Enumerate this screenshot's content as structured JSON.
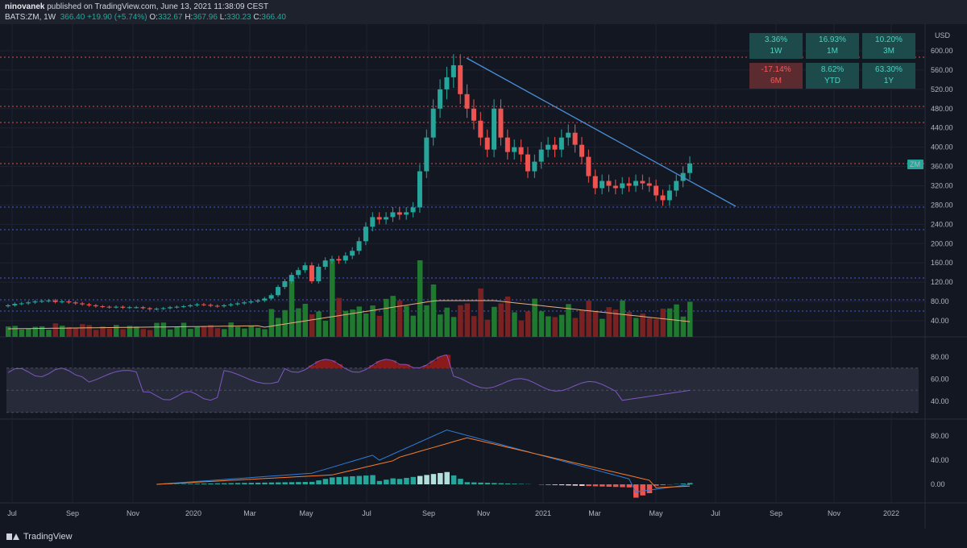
{
  "header": {
    "author": "ninovanek",
    "published_text": "published on TradingView.com, June 13, 2021 11:38:09 CEST",
    "symbol": "BATS:ZM, 1W",
    "last": "366.40",
    "change": "+19.90 (+5.74%)",
    "open_label": "O:",
    "open": "332.67",
    "high_label": "H:",
    "high": "367.96",
    "low_label": "L:",
    "low": "330.23",
    "close_label": "C:",
    "close": "366.40"
  },
  "price_tag": "ZM",
  "currency": "USD",
  "performance": [
    {
      "value": "3.36%",
      "period": "1W",
      "tone": "pos"
    },
    {
      "value": "16.93%",
      "period": "1M",
      "tone": "pos"
    },
    {
      "value": "10.20%",
      "period": "3M",
      "tone": "pos"
    },
    {
      "value": "-17.14%",
      "period": "6M",
      "tone": "neg"
    },
    {
      "value": "8.62%",
      "period": "YTD",
      "tone": "pos"
    },
    {
      "value": "63.30%",
      "period": "1Y",
      "tone": "pos"
    }
  ],
  "footer": {
    "brand": "TradingView"
  },
  "chart_data": {
    "type": "candlestick",
    "x_axis_labels": [
      "Jul",
      "Sep",
      "Nov",
      "2020",
      "Mar",
      "May",
      "Jul",
      "Sep",
      "Nov",
      "2021",
      "Mar",
      "May",
      "Jul",
      "Sep",
      "Nov",
      "2022"
    ],
    "price_axis": {
      "ticks": [
        "600.00",
        "560.00",
        "520.00",
        "480.00",
        "440.00",
        "400.00",
        "360.00",
        "320.00",
        "280.00",
        "240.00",
        "200.00",
        "160.00",
        "120.00",
        "80.00",
        "40.00"
      ],
      "ylim": [
        20,
        620
      ]
    },
    "closes": [
      72,
      75,
      76,
      78,
      80,
      81,
      82,
      79,
      80,
      78,
      76,
      74,
      72,
      70,
      69,
      68,
      69,
      67,
      68,
      68,
      66,
      64,
      65,
      66,
      68,
      69,
      70,
      72,
      74,
      73,
      71,
      70,
      72,
      74,
      76,
      78,
      80,
      82,
      86,
      93,
      110,
      122,
      135,
      145,
      155,
      122,
      152,
      165,
      168,
      165,
      175,
      185,
      205,
      235,
      255,
      250,
      255,
      265,
      260,
      265,
      275,
      350,
      420,
      480,
      520,
      545,
      570,
      510,
      480,
      455,
      420,
      395,
      480,
      420,
      390,
      400,
      385,
      350,
      370,
      395,
      405,
      395,
      420,
      430,
      405,
      380,
      340,
      315,
      330,
      320,
      315,
      325,
      320,
      330,
      325,
      320,
      300,
      290,
      310,
      330,
      346.5,
      366.4
    ],
    "annotations": {
      "trendline": [
        [
          579,
          72
        ],
        [
          913,
          256
        ]
      ],
      "resistance_red": [
        "~590",
        "~484",
        "~450",
        "~365"
      ],
      "support_blue": [
        "~273",
        "~232",
        "~130",
        "~88",
        "~60"
      ]
    },
    "rsi": {
      "ticks": [
        "80.00",
        "60.00",
        "40.00"
      ],
      "band": [
        30,
        70
      ]
    },
    "macd": {
      "ticks": [
        "80.00",
        "40.00",
        "0.00"
      ]
    }
  }
}
